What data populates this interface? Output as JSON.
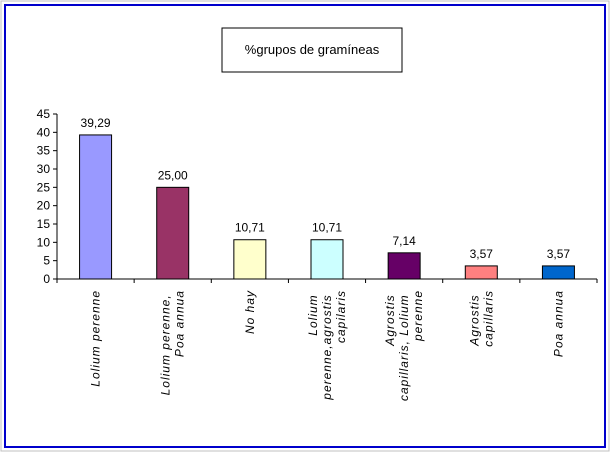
{
  "chart_data": {
    "type": "bar",
    "title": "%grupos de gramíneas",
    "categories": [
      "Lolium perenne",
      "Lolium perenne, Poa annua",
      "No hay",
      "Lolium perenne,agrostis capilaris",
      "Agrostis capillaris, Lolium perenne",
      "Agrostis capillaris",
      "Poa annua"
    ],
    "values": [
      39.29,
      25,
      10.71,
      10.71,
      7.14,
      3.57,
      3.57
    ],
    "value_labels": [
      "39,29",
      "25,00",
      "10,71",
      "10,71",
      "7,14",
      "3,57",
      "3,57"
    ],
    "colors": [
      "#9999ff",
      "#993366",
      "#ffffcc",
      "#ccffff",
      "#660066",
      "#ff8080",
      "#0066cc"
    ],
    "ylim": [
      0,
      45
    ],
    "yticks": [
      0,
      5,
      10,
      15,
      20,
      25,
      30,
      35,
      40,
      45
    ],
    "grid": false
  }
}
